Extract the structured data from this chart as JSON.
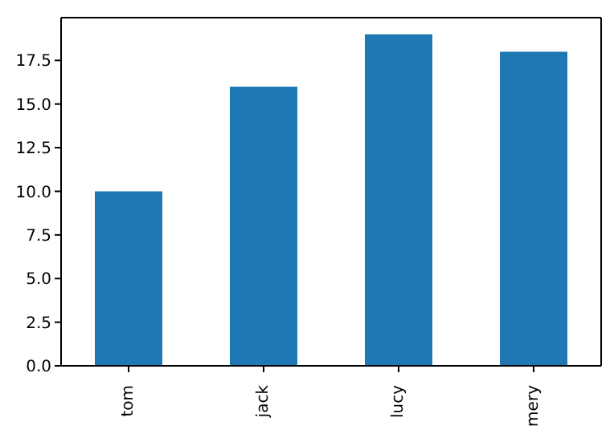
{
  "chart_data": {
    "type": "bar",
    "categories": [
      "tom",
      "jack",
      "lucy",
      "mery"
    ],
    "values": [
      10,
      16,
      19,
      18
    ],
    "color": "#1f77b4",
    "ylim": [
      0,
      19.95
    ],
    "yticks": [
      {
        "value": 0,
        "label": "0.0"
      },
      2.5,
      {
        "value": 5,
        "label": "5.0"
      },
      7.5,
      {
        "value": 10,
        "label": "10.0"
      },
      12.5,
      {
        "value": 15,
        "label": "15.0"
      },
      17.5
    ],
    "grid": false
  }
}
